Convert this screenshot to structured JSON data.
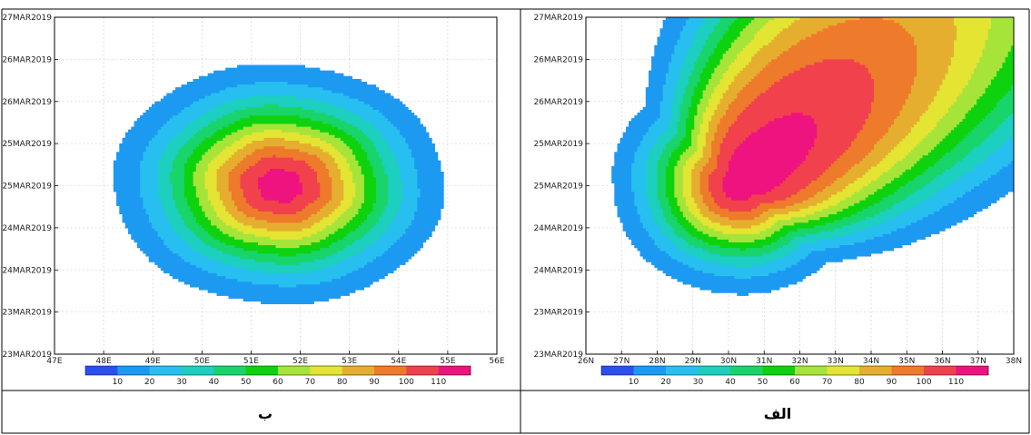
{
  "chart_data": [
    {
      "type": "heatmap",
      "panel_label": "ب",
      "x_ticks": [
        "47E",
        "48E",
        "49E",
        "50E",
        "51E",
        "52E",
        "53E",
        "54E",
        "55E",
        "56E"
      ],
      "x_range": [
        47,
        56
      ],
      "y_ticks": [
        "23MAR2019",
        "23MAR2019",
        "24MAR2019",
        "24MAR2019",
        "25MAR2019",
        "25MAR2019",
        "26MAR2019",
        "26MAR2019",
        "27MAR2019"
      ],
      "y_range_index": [
        0,
        8
      ],
      "grid": true,
      "colorbar": {
        "levels": [
          10,
          20,
          30,
          40,
          50,
          60,
          70,
          80,
          90,
          100,
          110
        ],
        "colors": [
          "#2c4ff2",
          "#1c9af2",
          "#27bff0",
          "#1ccfbf",
          "#19d46a",
          "#0ed20e",
          "#a6e43a",
          "#e4e433",
          "#e6ae2e",
          "#ee7a2c",
          "#f0414c",
          "#ee137e"
        ]
      },
      "field": {
        "peak_x": 51.6,
        "peak_y_index": 4.0,
        "peak_value": 115
      }
    },
    {
      "type": "heatmap",
      "panel_label": "الف",
      "x_ticks": [
        "26N",
        "27N",
        "28N",
        "29N",
        "30N",
        "31N",
        "32N",
        "33N",
        "34N",
        "35N",
        "36N",
        "37N",
        "38N"
      ],
      "x_range": [
        26,
        38
      ],
      "y_ticks": [
        "23MAR2019",
        "23MAR2019",
        "24MAR2019",
        "24MAR2019",
        "25MAR2019",
        "25MAR2019",
        "26MAR2019",
        "26MAR2019",
        "27MAR2019"
      ],
      "y_range_index": [
        0,
        8
      ],
      "grid": true,
      "colorbar": {
        "levels": [
          10,
          20,
          30,
          40,
          50,
          60,
          70,
          80,
          90,
          100,
          110
        ],
        "colors": [
          "#2c4ff2",
          "#1c9af2",
          "#27bff0",
          "#1ccfbf",
          "#19d46a",
          "#0ed20e",
          "#a6e43a",
          "#e4e433",
          "#e6ae2e",
          "#ee7a2c",
          "#f0414c",
          "#ee137e"
        ]
      },
      "field": {
        "peak_x": 30.3,
        "peak_y_index": 4.0,
        "peak_value": 115
      }
    }
  ]
}
